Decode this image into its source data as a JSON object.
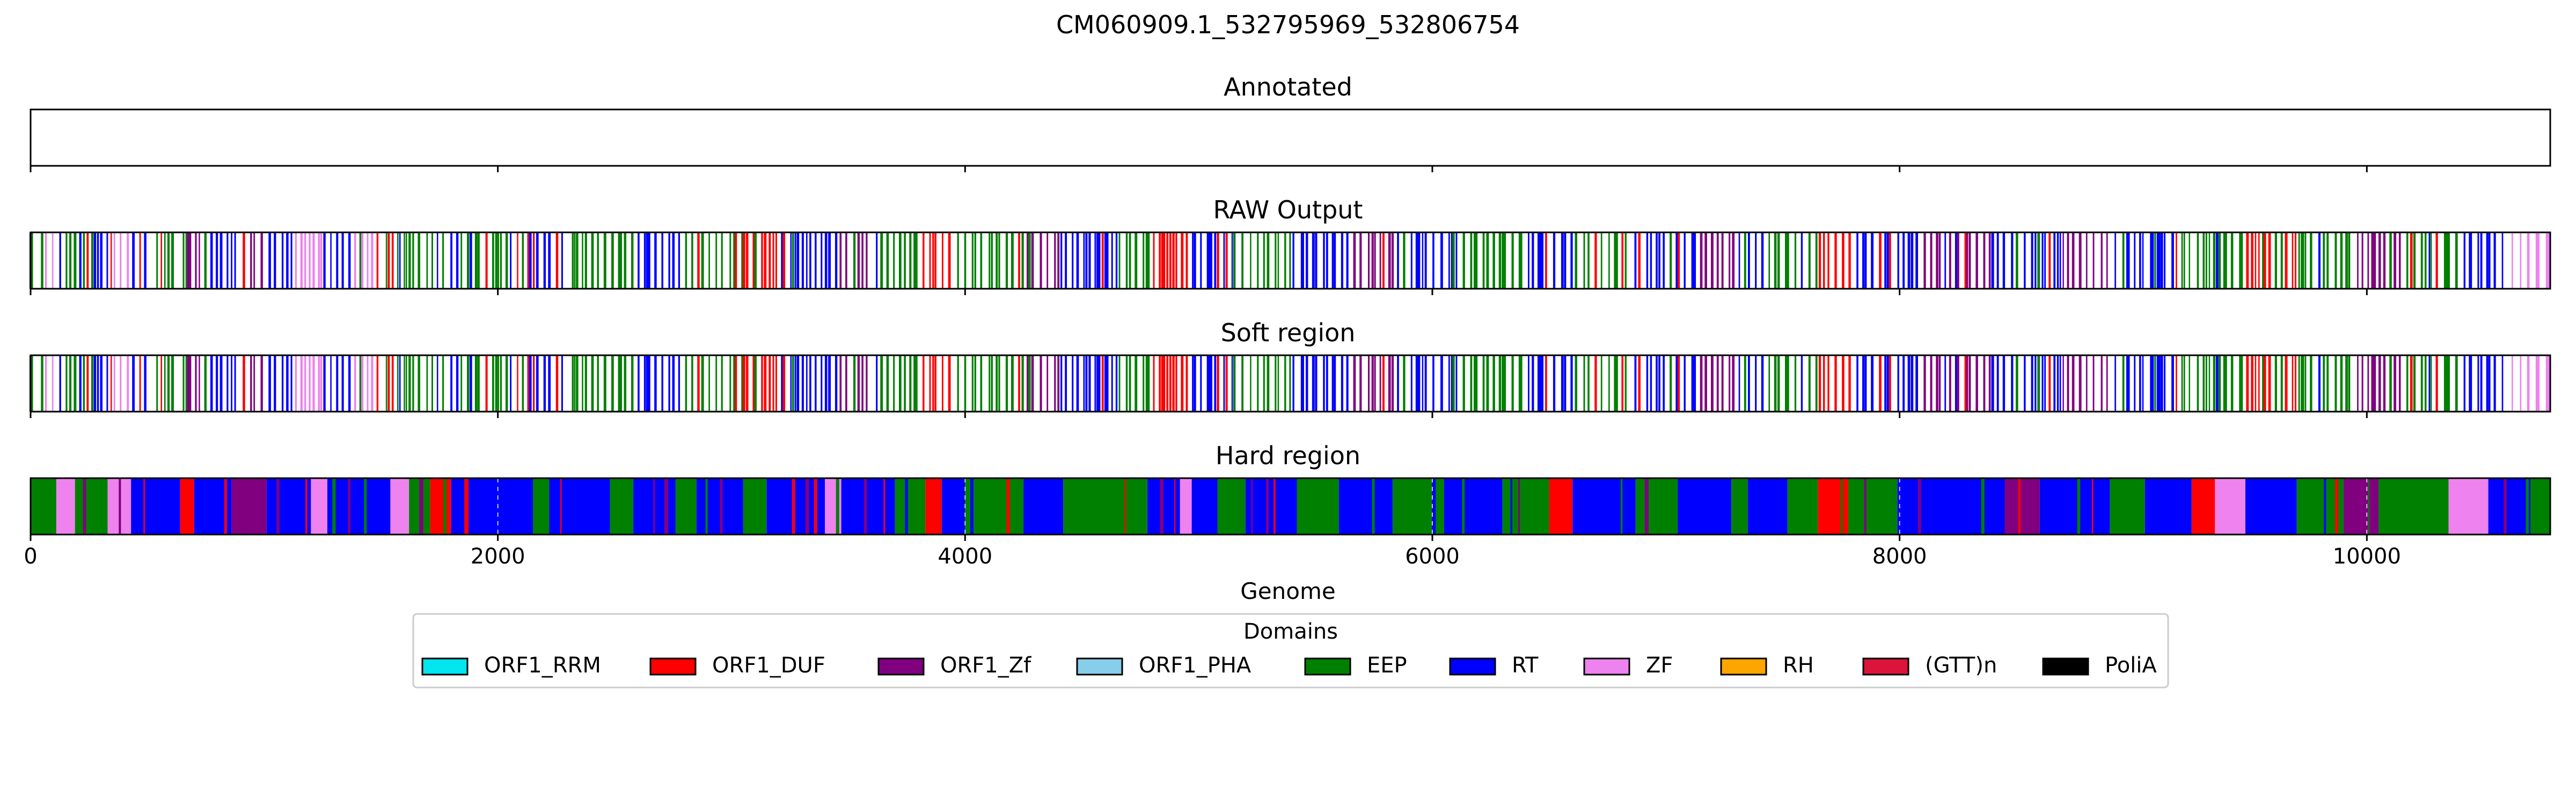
{
  "chart_data": {
    "type": "bar",
    "title": "CM060909.1_532795969_532806754",
    "xlabel": "Genome",
    "xlim": [
      0,
      10785
    ],
    "xticks": [
      0,
      2000,
      4000,
      6000,
      8000,
      10000
    ],
    "xtick_labels": [
      "0",
      "2000",
      "4000",
      "6000",
      "8000",
      "10000"
    ],
    "tracks": [
      {
        "name": "Annotated",
        "mode": "empty"
      },
      {
        "name": "RAW Output",
        "mode": "lines"
      },
      {
        "name": "Soft region",
        "mode": "lines"
      },
      {
        "name": "Hard region",
        "mode": "blocks"
      }
    ],
    "legend": {
      "title": "Domains",
      "placement": "bottom-center",
      "entries": [
        {
          "label": "ORF1_RRM",
          "color": "#00e5ee"
        },
        {
          "label": "ORF1_DUF",
          "color": "#ff0000"
        },
        {
          "label": "ORF1_Zf",
          "color": "#800080"
        },
        {
          "label": "ORF1_PHA",
          "color": "#87ceeb"
        },
        {
          "label": "EEP",
          "color": "#008000"
        },
        {
          "label": "RT",
          "color": "#0000ff"
        },
        {
          "label": "ZF",
          "color": "#ee82ee"
        },
        {
          "label": "RH",
          "color": "#ffa500"
        },
        {
          "label": "(GTT)n",
          "color": "#dc143c"
        },
        {
          "label": "PoliA",
          "color": "#000000"
        }
      ]
    },
    "line_segments": [
      [
        0,
        30,
        "EEP"
      ],
      [
        30,
        60,
        "RT"
      ],
      [
        60,
        120,
        "ZF"
      ],
      [
        120,
        260,
        "EEP"
      ],
      [
        260,
        330,
        "RT"
      ],
      [
        330,
        420,
        "ZF"
      ],
      [
        420,
        520,
        "RT"
      ],
      [
        520,
        640,
        "EEP"
      ],
      [
        640,
        760,
        "ORF1_Zf"
      ],
      [
        760,
        900,
        "RT"
      ],
      [
        900,
        1000,
        "ORF1_Zf"
      ],
      [
        1000,
        1120,
        "RT"
      ],
      [
        1120,
        1250,
        "ZF"
      ],
      [
        1250,
        1380,
        "RT"
      ],
      [
        1380,
        1500,
        "ZF"
      ],
      [
        1500,
        1560,
        "ORF1_DUF"
      ],
      [
        1560,
        1700,
        "EEP"
      ],
      [
        1700,
        1900,
        "RT"
      ],
      [
        1900,
        2100,
        "EEP"
      ],
      [
        2100,
        2300,
        "RT"
      ],
      [
        2300,
        2600,
        "EEP"
      ],
      [
        2600,
        2800,
        "RT"
      ],
      [
        2800,
        3050,
        "EEP"
      ],
      [
        3050,
        3200,
        "ORF1_DUF"
      ],
      [
        3200,
        3450,
        "RT"
      ],
      [
        3450,
        3600,
        "ORF1_Zf"
      ],
      [
        3600,
        3800,
        "EEP"
      ],
      [
        3800,
        3950,
        "ORF1_DUF"
      ],
      [
        3950,
        4250,
        "EEP"
      ],
      [
        4250,
        4400,
        "ORF1_Zf"
      ],
      [
        4400,
        4650,
        "RT"
      ],
      [
        4650,
        4800,
        "EEP"
      ],
      [
        4800,
        4950,
        "ORF1_DUF"
      ],
      [
        4950,
        5150,
        "RT"
      ],
      [
        5150,
        5400,
        "EEP"
      ],
      [
        5400,
        5650,
        "RT"
      ],
      [
        5650,
        5850,
        "ORF1_Zf"
      ],
      [
        5850,
        6100,
        "RT"
      ],
      [
        6100,
        6400,
        "EEP"
      ],
      [
        6400,
        6600,
        "RT"
      ],
      [
        6600,
        6850,
        "EEP"
      ],
      [
        6850,
        7150,
        "RT"
      ],
      [
        7150,
        7300,
        "ORF1_Zf"
      ],
      [
        7300,
        7500,
        "RT"
      ],
      [
        7500,
        7650,
        "EEP"
      ],
      [
        7650,
        7800,
        "ORF1_DUF"
      ],
      [
        7800,
        8100,
        "RT"
      ],
      [
        8100,
        8400,
        "ORF1_Zf"
      ],
      [
        8400,
        8700,
        "RT"
      ],
      [
        8700,
        8900,
        "ORF1_Zf"
      ],
      [
        8900,
        9200,
        "RT"
      ],
      [
        9200,
        9500,
        "EEP"
      ],
      [
        9500,
        9700,
        "ORF1_DUF"
      ],
      [
        9700,
        9950,
        "EEP"
      ],
      [
        9950,
        10150,
        "ORF1_Zf"
      ],
      [
        10150,
        10400,
        "EEP"
      ],
      [
        10400,
        10600,
        "RT"
      ],
      [
        10600,
        10785,
        "ZF"
      ]
    ],
    "hard_blocks": [
      [
        0,
        110,
        "EEP"
      ],
      [
        110,
        190,
        "ZF"
      ],
      [
        190,
        330,
        "EEP"
      ],
      [
        330,
        430,
        "ZF"
      ],
      [
        430,
        640,
        "RT"
      ],
      [
        640,
        700,
        "ORF1_DUF"
      ],
      [
        700,
        860,
        "RT"
      ],
      [
        860,
        1010,
        "ORF1_Zf"
      ],
      [
        1010,
        1200,
        "RT"
      ],
      [
        1200,
        1270,
        "ZF"
      ],
      [
        1270,
        1540,
        "RT"
      ],
      [
        1540,
        1620,
        "ZF"
      ],
      [
        1620,
        1710,
        "EEP"
      ],
      [
        1710,
        1800,
        "ORF1_DUF"
      ],
      [
        1800,
        2150,
        "RT"
      ],
      [
        2150,
        2220,
        "EEP"
      ],
      [
        2220,
        2480,
        "RT"
      ],
      [
        2480,
        2580,
        "EEP"
      ],
      [
        2580,
        2760,
        "RT"
      ],
      [
        2760,
        2850,
        "EEP"
      ],
      [
        2850,
        3050,
        "RT"
      ],
      [
        3050,
        3150,
        "EEP"
      ],
      [
        3150,
        3400,
        "RT"
      ],
      [
        3400,
        3470,
        "ZF"
      ],
      [
        3470,
        3700,
        "RT"
      ],
      [
        3700,
        3830,
        "EEP"
      ],
      [
        3830,
        3900,
        "ORF1_DUF"
      ],
      [
        3900,
        4000,
        "RT"
      ],
      [
        4000,
        4250,
        "EEP"
      ],
      [
        4250,
        4420,
        "RT"
      ],
      [
        4420,
        4780,
        "EEP"
      ],
      [
        4780,
        4920,
        "RT"
      ],
      [
        4920,
        4970,
        "ZF"
      ],
      [
        4970,
        5080,
        "RT"
      ],
      [
        5080,
        5200,
        "EEP"
      ],
      [
        5200,
        5420,
        "RT"
      ],
      [
        5420,
        5600,
        "EEP"
      ],
      [
        5600,
        5830,
        "RT"
      ],
      [
        5830,
        6050,
        "EEP"
      ],
      [
        6050,
        6300,
        "RT"
      ],
      [
        6300,
        6500,
        "EEP"
      ],
      [
        6500,
        6600,
        "ORF1_DUF"
      ],
      [
        6600,
        6870,
        "RT"
      ],
      [
        6870,
        7050,
        "EEP"
      ],
      [
        7050,
        7280,
        "RT"
      ],
      [
        7280,
        7350,
        "EEP"
      ],
      [
        7350,
        7520,
        "RT"
      ],
      [
        7520,
        7650,
        "EEP"
      ],
      [
        7650,
        7780,
        "ORF1_DUF"
      ],
      [
        7780,
        7990,
        "EEP"
      ],
      [
        7990,
        8450,
        "RT"
      ],
      [
        8450,
        8600,
        "ORF1_Zf"
      ],
      [
        8600,
        8900,
        "RT"
      ],
      [
        8900,
        9050,
        "EEP"
      ],
      [
        9050,
        9250,
        "RT"
      ],
      [
        9250,
        9350,
        "ORF1_DUF"
      ],
      [
        9350,
        9480,
        "ZF"
      ],
      [
        9480,
        9700,
        "RT"
      ],
      [
        9700,
        9900,
        "EEP"
      ],
      [
        9900,
        10050,
        "ORF1_Zf"
      ],
      [
        10050,
        10350,
        "EEP"
      ],
      [
        10350,
        10520,
        "ZF"
      ],
      [
        10520,
        10700,
        "RT"
      ],
      [
        10700,
        10785,
        "EEP"
      ]
    ]
  }
}
